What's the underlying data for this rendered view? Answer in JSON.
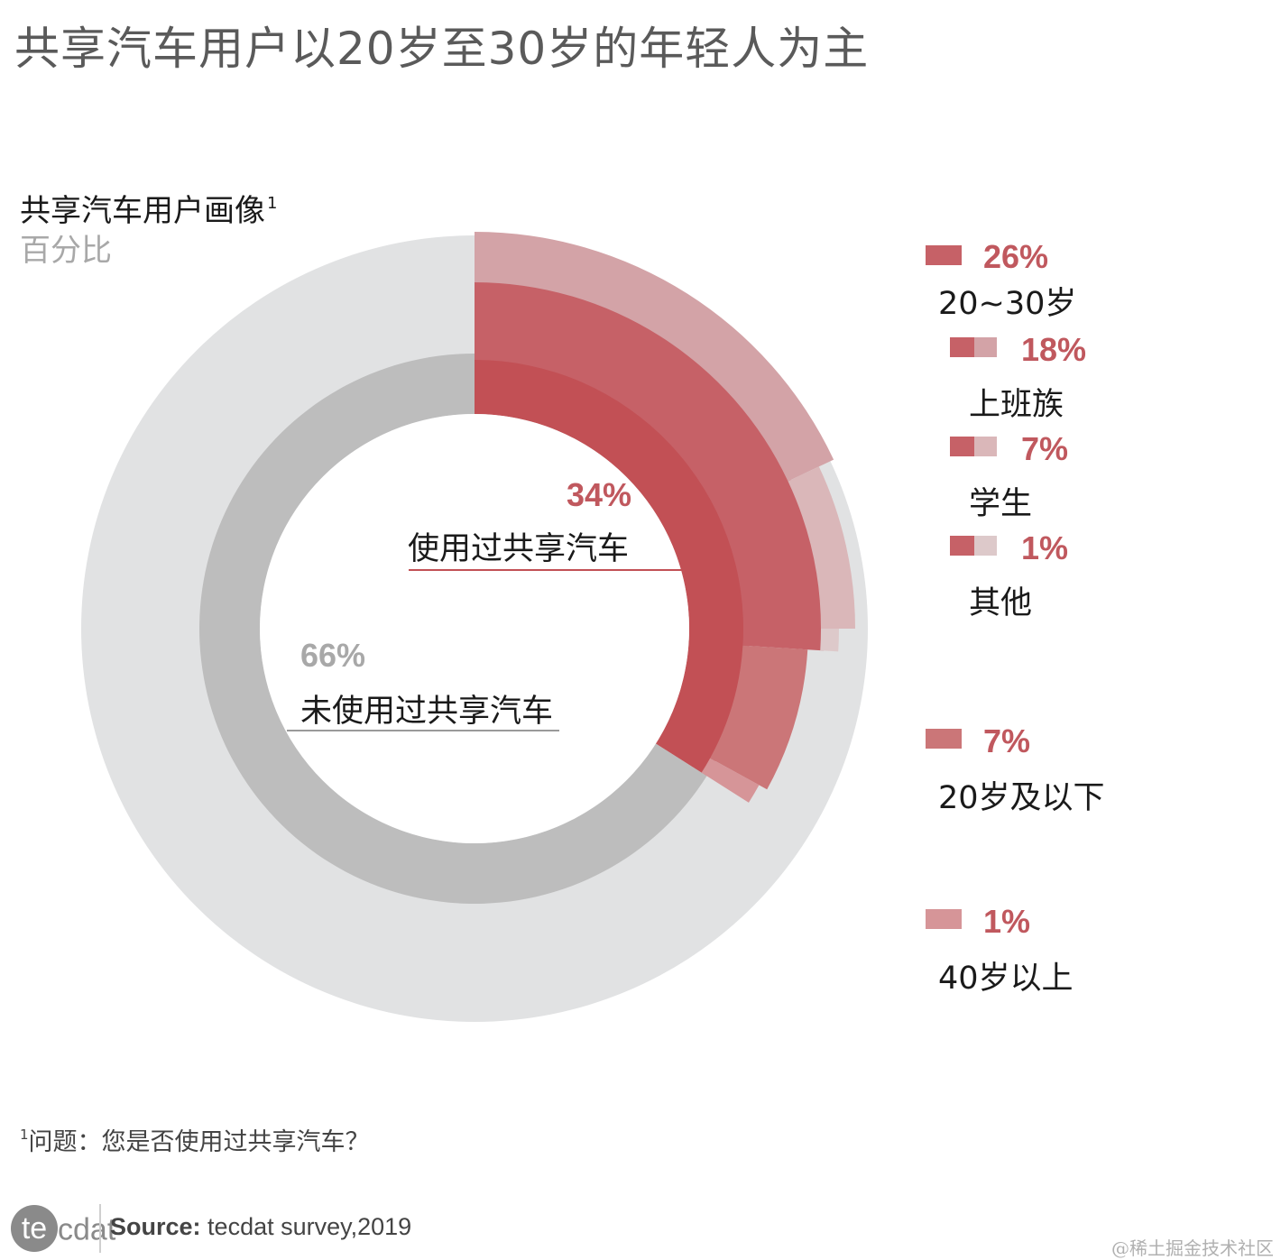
{
  "title": "共享汽车用户以20岁至30岁的年轻人为主",
  "subtitle": "共享汽车用户画像",
  "subtitle_sup": "1",
  "unit": "百分比",
  "footnote": {
    "marker": "1",
    "text": "问题：您是否使用过共享汽车？"
  },
  "source": {
    "label": "Source:",
    "text": "tecdat survey,2019"
  },
  "logo": {
    "first": "te",
    "rest": "cdat"
  },
  "watermark": "@稀土掘金技术社区",
  "colors": {
    "inner_used": "#c25055",
    "inner_unused": "#bdbdbd",
    "outer_bg": "#e1e2e3",
    "age_20_30": "#c66167",
    "age_under20": "#cb7678",
    "age_40plus": "#d69598",
    "job_office": "#d3a3a7",
    "job_student": "#dab7b9",
    "job_other": "#ddc9ca",
    "pct_text": "#c0585e",
    "pct_gray": "#a8a8a8"
  },
  "chart_data": {
    "type": "pie",
    "inner_ring": [
      {
        "name": "使用过共享汽车",
        "value": 34,
        "label": "34%"
      },
      {
        "name": "未使用过共享汽车",
        "value": 66,
        "label": "66%"
      }
    ],
    "age_breakdown": [
      {
        "name": "20~30岁",
        "value": 26,
        "label": "26%"
      },
      {
        "name": "20岁及以下",
        "value": 7,
        "label": "7%"
      },
      {
        "name": "40岁以上",
        "value": 1,
        "label": "1%"
      }
    ],
    "occupation_breakdown_of_20_30": [
      {
        "name": "上班族",
        "value": 18,
        "label": "18%"
      },
      {
        "name": "学生",
        "value": 7,
        "label": "7%"
      },
      {
        "name": "其他",
        "value": 1,
        "label": "1%"
      }
    ]
  }
}
